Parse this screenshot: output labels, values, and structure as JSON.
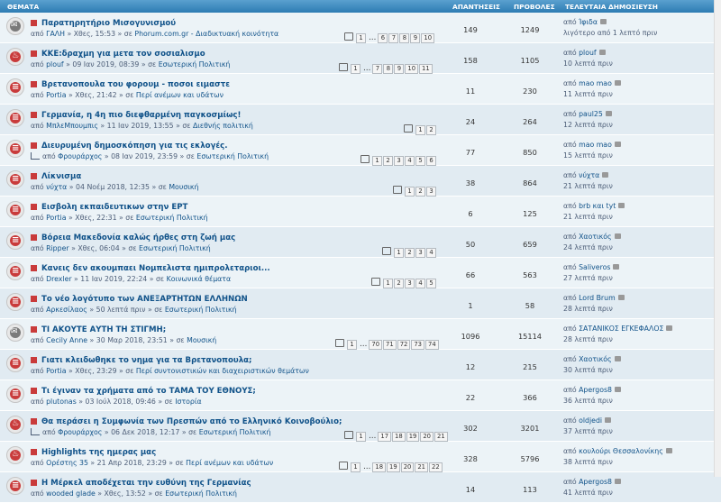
{
  "header": {
    "topics": "ΘΕΜΑΤΑ",
    "replies": "ΑΠΑΝΤΗΣΕΙΣ",
    "views": "ΠΡΟΒΟΛΕΣ",
    "last_post": "ΤΕΛΕΥΤΑΙΑ ΔΗΜΟΣΙΕΥΣΗ"
  },
  "topics": [
    {
      "icon": "lock",
      "title": "Παρατηρητήριο Μισογυνισμού",
      "meta_by": "από ",
      "author": "ΓΑΛΗ",
      "meta_date": " » Χθες, 15:53 » σε ",
      "forum": "Phorum.com.gr - Διαδικτυακή κοινότητα",
      "poll": false,
      "pages": [
        "1",
        "…",
        "6",
        "7",
        "8",
        "9",
        "10"
      ],
      "pages_x": 382,
      "replies": "149",
      "views": "1249",
      "last_by": "από ",
      "last_user": "Ίφιδα",
      "last_time": "λιγότερο από 1 λεπτό πριν"
    },
    {
      "icon": "fire",
      "title": "ΚΚΕ:δραχμη για μετα τον σοσιαλισμο",
      "meta_by": "από ",
      "author": "plouf",
      "meta_date": " » 09 Ιαν 2019, 08:39 » σε ",
      "forum": "Εσωτερική Πολιτική",
      "poll": false,
      "pages": [
        "1",
        "…",
        "7",
        "8",
        "9",
        "10",
        "11"
      ],
      "pages_x": 376,
      "replies": "158",
      "views": "1105",
      "last_by": "από ",
      "last_user": "plouf",
      "last_time": "10 λεπτά πριν"
    },
    {
      "icon": "hot",
      "title": "Βρετανοπουλα του φορουμ - ποσοι ειμαστε",
      "meta_by": "από ",
      "author": "Portia",
      "meta_date": " » Χθες, 21:42 » σε ",
      "forum": "Περί ανέμων και υδάτων",
      "poll": false,
      "pages": [],
      "pages_x": 0,
      "replies": "11",
      "views": "230",
      "last_by": "από ",
      "last_user": "mao mao",
      "last_time": "11 λεπτά πριν"
    },
    {
      "icon": "hot",
      "title": "Γερμανία, η 4η πιο διεφθαρμένη παγκοσμίως!",
      "meta_by": "από ",
      "author": "ΜπλεΜπουμπις",
      "meta_date": " » 11 Ιαν 2019, 13:55 » σε ",
      "forum": "Διεθνής πολιτική",
      "poll": false,
      "pages": [
        "1",
        "2"
      ],
      "pages_x": 448,
      "replies": "24",
      "views": "264",
      "last_by": "από ",
      "last_user": "paul25",
      "last_time": "12 λεπτά πριν"
    },
    {
      "icon": "hot",
      "title": "Διευρυμένη δημοσκόπηση για τις εκλογές.",
      "meta_by": "από ",
      "author": "Φρουράρχος",
      "meta_date": " » 08 Ιαν 2019, 23:59 » σε ",
      "forum": "Εσωτερική Πολιτική",
      "poll": true,
      "pages": [
        "1",
        "2",
        "3",
        "4",
        "5",
        "6"
      ],
      "pages_x": 400,
      "replies": "77",
      "views": "850",
      "last_by": "από ",
      "last_user": "mao mao",
      "last_time": "15 λεπτά πριν"
    },
    {
      "icon": "hot",
      "title": "Λίκνισμα",
      "meta_by": "από ",
      "author": "νύχτα",
      "meta_date": " » 04 Νοέμ 2018, 12:35 » σε ",
      "forum": "Μουσική",
      "poll": false,
      "pages": [
        "1",
        "2",
        "3"
      ],
      "pages_x": 436,
      "replies": "38",
      "views": "864",
      "last_by": "από ",
      "last_user": "νύχτα",
      "last_time": "21 λεπτά πριν"
    },
    {
      "icon": "hot",
      "title": "Εισβολη εκπαιδευτικων στην ΕΡΤ",
      "meta_by": "από ",
      "author": "Portia",
      "meta_date": " » Χθες, 22:31 » σε ",
      "forum": "Εσωτερική Πολιτική",
      "poll": false,
      "pages": [],
      "pages_x": 0,
      "replies": "6",
      "views": "125",
      "last_by": "από ",
      "last_user": "brb και tyt",
      "last_time": "21 λεπτά πριν"
    },
    {
      "icon": "hot",
      "title": "Βόρεια Μακεδονία καλώς ήρθες στη ζωή μας",
      "meta_by": "από ",
      "author": "Ripper",
      "meta_date": " » Χθες, 06:04 » σε ",
      "forum": "Εσωτερική Πολιτική",
      "poll": false,
      "pages": [
        "1",
        "2",
        "3",
        "4"
      ],
      "pages_x": 424,
      "replies": "50",
      "views": "659",
      "last_by": "από ",
      "last_user": "Χαοτικός",
      "last_time": "24 λεπτά πριν"
    },
    {
      "icon": "hot",
      "title": "Κανεις δεν ακουμπαει Νομπελιστα ημιπρολεταριοι...",
      "meta_by": "από ",
      "author": "Drexler",
      "meta_date": " » 11 Ιαν 2019, 22:24 » σε ",
      "forum": "Κοινωνικά θέματα",
      "poll": false,
      "pages": [
        "1",
        "2",
        "3",
        "4",
        "5"
      ],
      "pages_x": 412,
      "replies": "66",
      "views": "563",
      "last_by": "από ",
      "last_user": "Saliveros",
      "last_time": "27 λεπτά πριν"
    },
    {
      "icon": "hot",
      "title": "Το νέο λογότυπο των ΑΝΕΞΑΡΤΗΤΩΝ ΕΛΛΗΝΩΝ",
      "meta_by": "από ",
      "author": "Αρκεσίλαος",
      "meta_date": " » 50 λεπτά πριν » σε ",
      "forum": "Εσωτερική Πολιτική",
      "poll": false,
      "pages": [],
      "pages_x": 0,
      "replies": "1",
      "views": "58",
      "last_by": "από ",
      "last_user": "Lord Brum",
      "last_time": "28 λεπτά πριν"
    },
    {
      "icon": "lock",
      "title": "ΤΙ ΑΚΟΥΤΕ ΑΥΤΗ ΤΗ ΣΤΙΓΜΗ;",
      "meta_by": "από ",
      "author": "Cecily Anne",
      "meta_date": " » 30 Μαρ 2018, 23:51 » σε ",
      "forum": "Μουσική",
      "poll": false,
      "pages": [
        "1",
        "…",
        "70",
        "71",
        "72",
        "73",
        "74"
      ],
      "pages_x": 372,
      "replies": "1096",
      "views": "15114",
      "last_by": "από ",
      "last_user": "ΣΑΤΑΝΙΚΟΣ ΕΓΚΕΦΑΛΟΣ",
      "last_time": "28 λεπτά πριν"
    },
    {
      "icon": "hot",
      "title": "Γιατι κλειδωθηκε το νημα για τα Βρετανοπουλα;",
      "meta_by": "από ",
      "author": "Portia",
      "meta_date": " » Χθες, 23:29 » σε ",
      "forum": "Περί συντονιστικών και διαχειριστικών θεμάτων",
      "poll": false,
      "pages": [],
      "pages_x": 0,
      "replies": "12",
      "views": "215",
      "last_by": "από ",
      "last_user": "Χαοτικός",
      "last_time": "30 λεπτά πριν"
    },
    {
      "icon": "hot",
      "title": "Τι έγιναν τα χρήματα από το ΤΑΜΑ ΤΟΥ ΕΘΝΟΥΣ;",
      "meta_by": "από ",
      "author": "plutonas",
      "meta_date": " » 03 Ιούλ 2018, 09:46 » σε ",
      "forum": "Ιστορία",
      "poll": false,
      "pages": [],
      "pages_x": 0,
      "replies": "22",
      "views": "366",
      "last_by": "από ",
      "last_user": "Apergos8",
      "last_time": "36 λεπτά πριν"
    },
    {
      "icon": "fire",
      "title": "Θα περάσει η Συμφωνία των Πρεσπών από το Ελληνικό Κοινοβούλιο;",
      "meta_by": "από ",
      "author": "Φρουράρχος",
      "meta_date": " » 06 Δεκ 2018, 12:17 » σε ",
      "forum": "Εσωτερική Πολιτική",
      "poll": true,
      "pages": [
        "1",
        "…",
        "17",
        "18",
        "19",
        "20",
        "21"
      ],
      "pages_x": 382,
      "replies": "302",
      "views": "3201",
      "last_by": "από ",
      "last_user": "oldjedi",
      "last_time": "37 λεπτά πριν"
    },
    {
      "icon": "fire",
      "title": "Highlights της ημερας μας",
      "meta_by": "από ",
      "author": "Ορέστης 35",
      "meta_date": " » 21 Απρ 2018, 23:29 » σε ",
      "forum": "Περί ανέμων και υδάτων",
      "poll": false,
      "pages": [
        "1",
        "…",
        "18",
        "19",
        "20",
        "21",
        "22"
      ],
      "pages_x": 376,
      "replies": "328",
      "views": "5796",
      "last_by": "από ",
      "last_user": "κουλούρι Θεσσαλονίκης",
      "last_time": "38 λεπτά πριν"
    },
    {
      "icon": "hot",
      "title": "Η Μέρκελ αποδέχεται την ευθύνη της Γερμανίας",
      "meta_by": "από ",
      "author": "wooded glade",
      "meta_date": " » Χθες, 13:52 » σε ",
      "forum": "Εσωτερική Πολιτική",
      "poll": false,
      "pages": [],
      "pages_x": 0,
      "replies": "14",
      "views": "113",
      "last_by": "από ",
      "last_user": "Apergos8",
      "last_time": "41 λεπτά πριν"
    }
  ]
}
